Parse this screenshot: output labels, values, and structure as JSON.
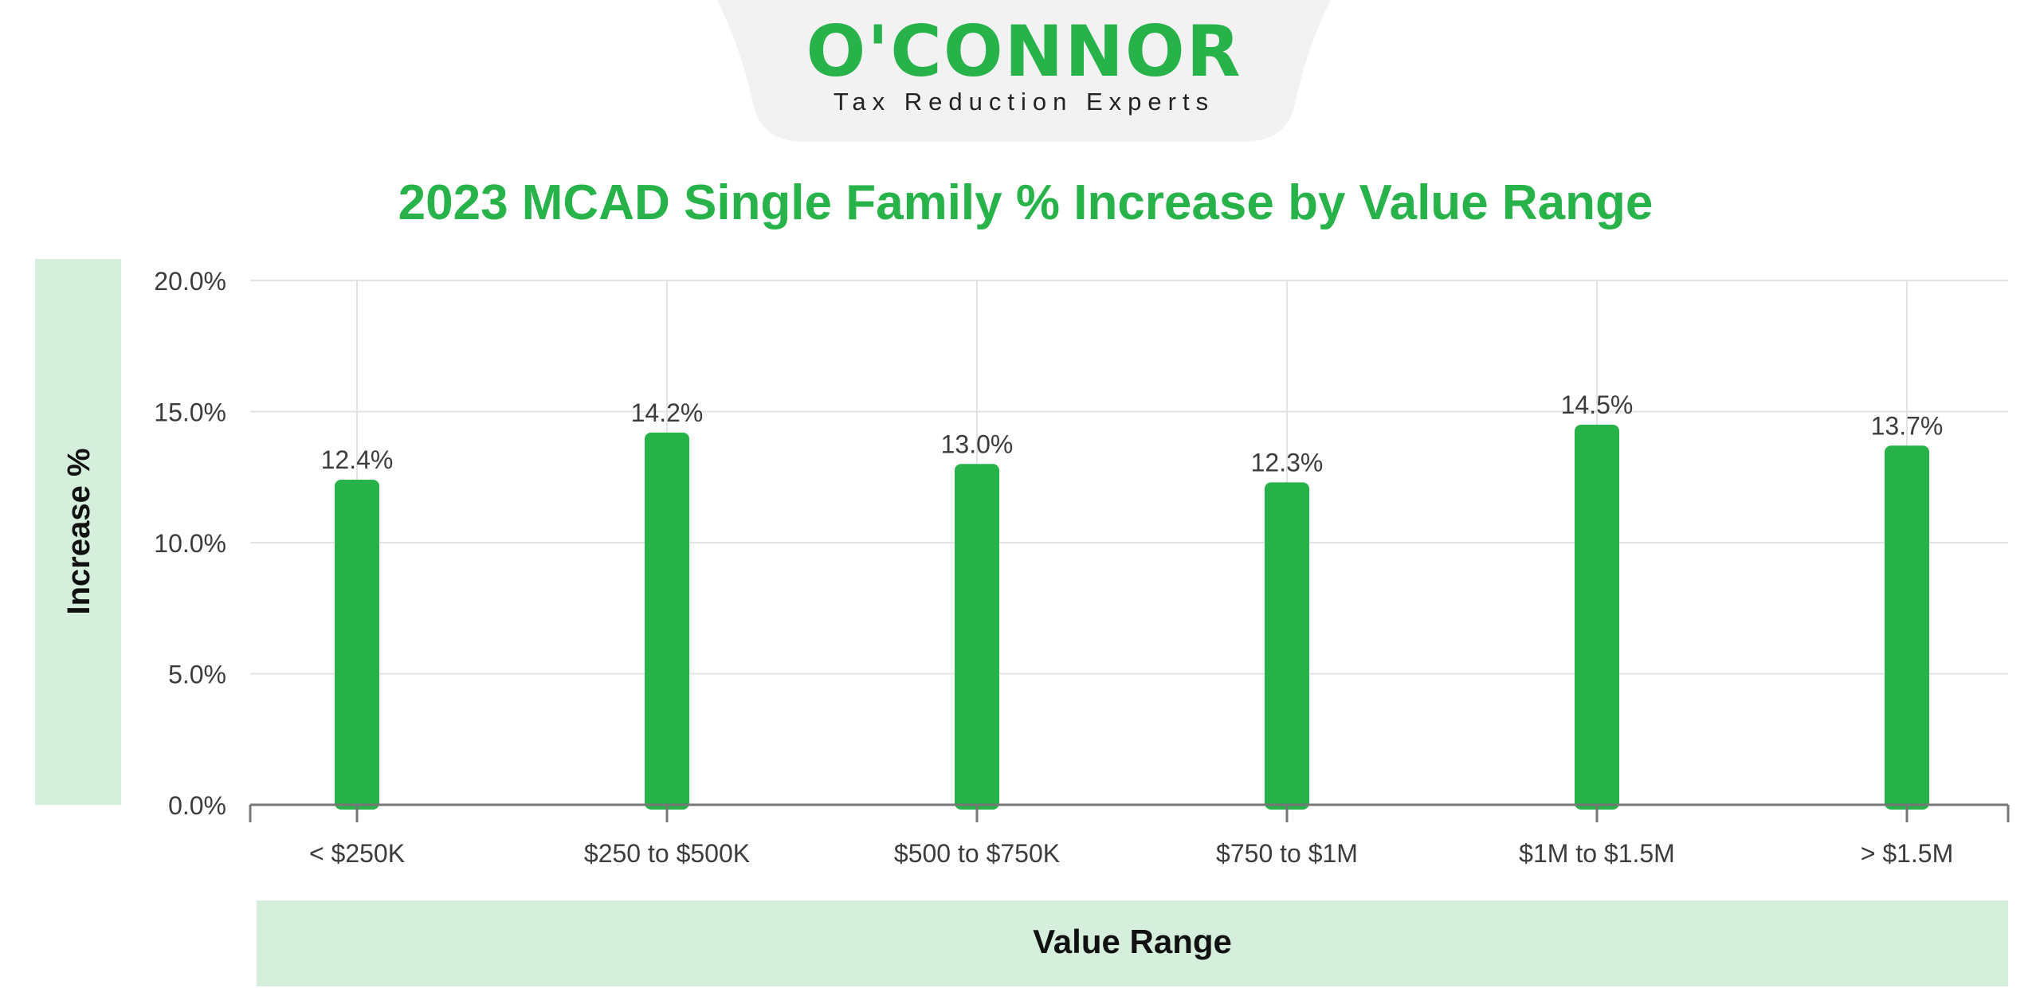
{
  "brand": {
    "name": "O'CONNOR",
    "tagline": "Tax Reduction Experts",
    "color": "#27B24A"
  },
  "colors": {
    "bar": "#27B24A",
    "title": "#27B24A",
    "panel": "#D6EFDD",
    "grid": "#E3E3E3",
    "axis": "#777777",
    "tick_text": "#3C3C3C",
    "label_text": "#111111"
  },
  "chart_data": {
    "type": "bar",
    "title": "2023 MCAD Single Family % Increase by Value Range",
    "xlabel": "Value Range",
    "ylabel": "Increase %",
    "categories": [
      "< $250K",
      "$250 to $500K",
      "$500 to $750K",
      "$750 to $1M",
      "$1M to $1.5M",
      "> $1.5M"
    ],
    "values": [
      12.4,
      14.2,
      13.0,
      12.3,
      14.5,
      13.7
    ],
    "data_labels": [
      "12.4%",
      "14.2%",
      "13.0%",
      "12.3%",
      "14.5%",
      "13.7%"
    ],
    "ylim": [
      0,
      20
    ],
    "yticks": [
      0,
      5,
      10,
      15,
      20
    ],
    "ytick_labels": [
      "0.0%",
      "5.0%",
      "10.0%",
      "15.0%",
      "20.0%"
    ],
    "grid": true,
    "legend": "none"
  }
}
